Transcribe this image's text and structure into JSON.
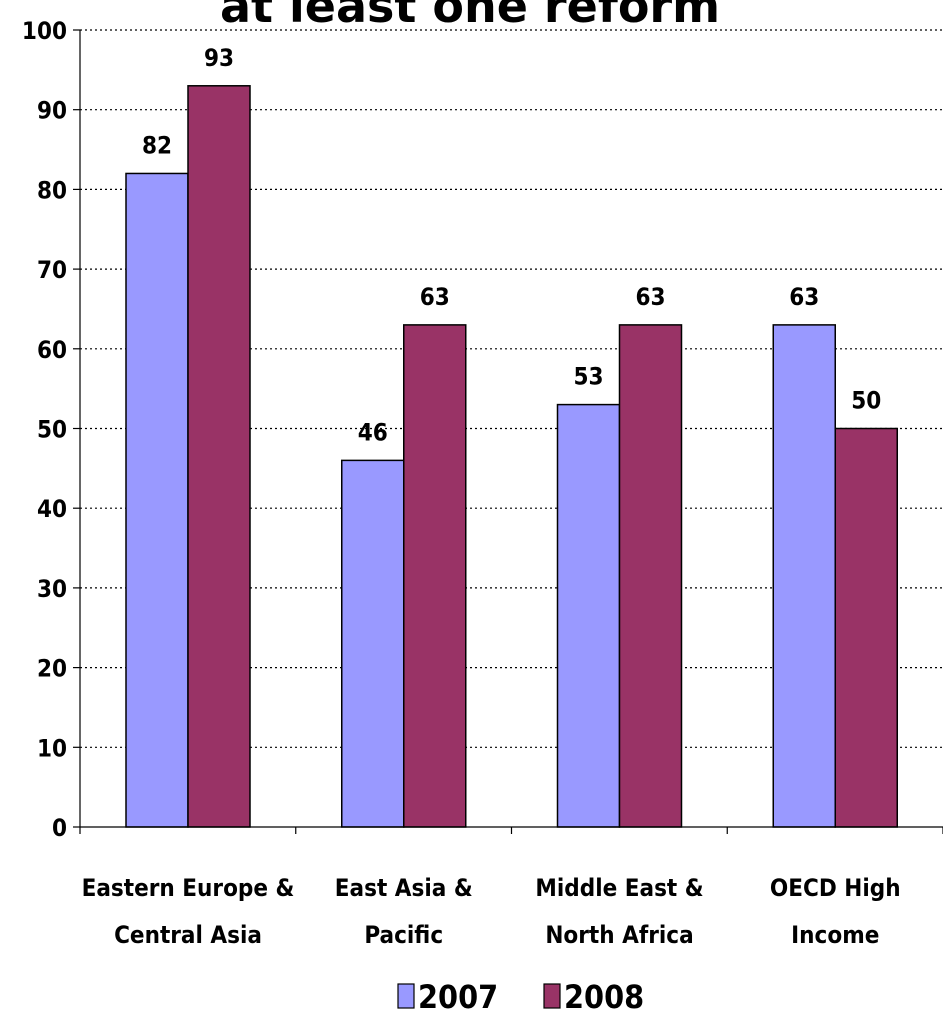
{
  "chart_data": {
    "type": "bar",
    "title": "at least one reform",
    "categories": [
      [
        "Eastern Europe &",
        "Central Asia"
      ],
      [
        "East Asia &",
        "Pacific"
      ],
      [
        "Middle East &",
        "North Africa"
      ],
      [
        "OECD High",
        "Income"
      ]
    ],
    "series": [
      {
        "name": "2007",
        "color": "#9999ff",
        "values": [
          82,
          46,
          53,
          63
        ]
      },
      {
        "name": "2008",
        "color": "#993366",
        "values": [
          93,
          63,
          63,
          50
        ]
      }
    ],
    "ylim": [
      0,
      100
    ],
    "yticks": [
      "0",
      "10",
      "20",
      "30",
      "40",
      "50",
      "60",
      "70",
      "80",
      "90",
      "100"
    ],
    "grid": true,
    "legend_position": "bottom"
  }
}
